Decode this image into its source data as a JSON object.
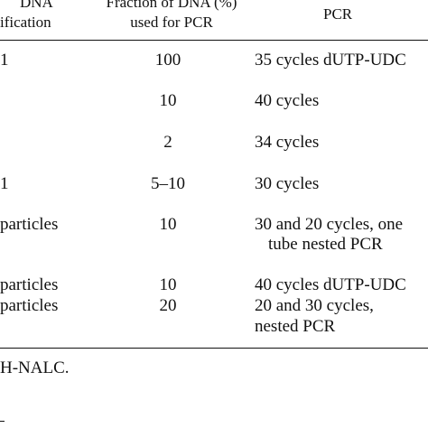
{
  "table": {
    "headers": {
      "col1_line1": "DNA",
      "col1_line2": "ification",
      "col2_line1": "Fraction of DNA (%)",
      "col2_line2": "used for PCR",
      "col3": "PCR"
    },
    "rows": [
      {
        "col1": "1",
        "col2": "100",
        "col3": "35 cycles dUTP-UDC"
      },
      {
        "col1": "",
        "col2": "10",
        "col3": "40 cycles"
      },
      {
        "col1": "",
        "col2": "2",
        "col3": "34 cycles"
      },
      {
        "col1": "1",
        "col2": "5–10",
        "col3": "30 cycles"
      },
      {
        "col1": "particles",
        "col2": "10",
        "col3": "30 and 20 cycles, one",
        "col3_line2": "tube nested PCR"
      },
      {
        "col1": "particles",
        "col2": "10",
        "col3": "40 cycles dUTP-UDC"
      },
      {
        "col1": "particles",
        "col2": "20",
        "col3": "20 and 30 cycles,",
        "col3_line2": "nested PCR"
      }
    ],
    "footnote": "H-NALC."
  }
}
